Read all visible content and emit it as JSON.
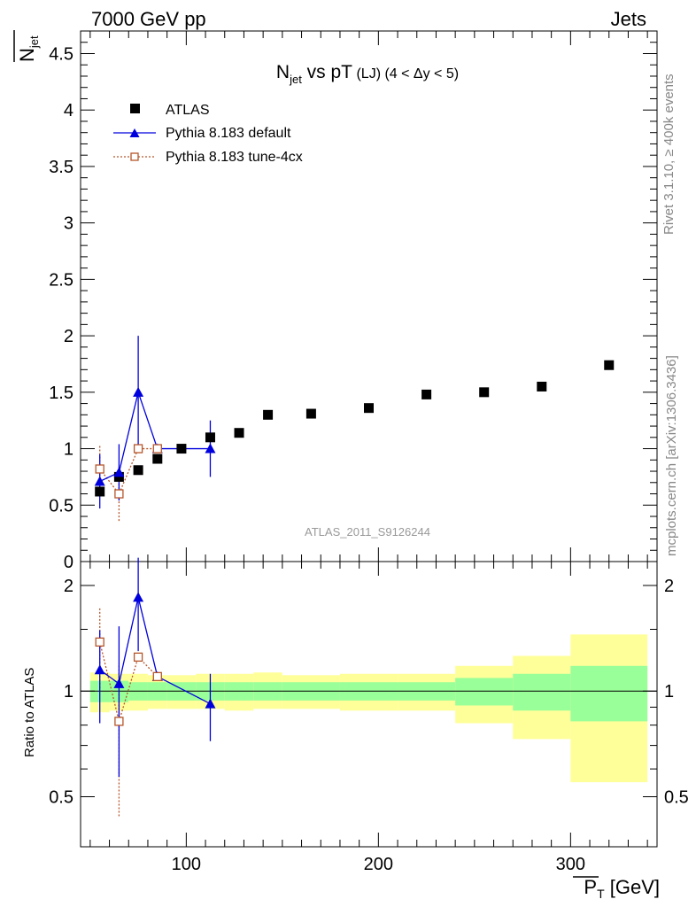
{
  "header": {
    "left": "7000 GeV pp",
    "right": "Jets"
  },
  "side_labels": {
    "rivet": "Rivet 3.1.10, ≥ 400k events",
    "mcplots": "mcplots.cern.ch [arXiv:1306.3436]"
  },
  "title": {
    "main": "N",
    "main_sub": "jet",
    "rest": " vs pT",
    "extra": " (LJ) (4 < Δy < 5)"
  },
  "watermark": "ATLAS_2011_S9126244",
  "colors": {
    "atlas": "#000000",
    "default": "#0000dd",
    "tune": "#b5562a",
    "band_inner": "#99ff99",
    "band_outer": "#ffff99"
  },
  "chart_data": [
    {
      "type": "scatter",
      "title": "Njet vs pT (LJ) (4 < Δy < 5)",
      "ylabel": "N",
      "ylabel_sub": "jet",
      "ylim": [
        0,
        4.7
      ],
      "xlim": [
        45,
        345
      ],
      "yticks": [
        0,
        0.5,
        1,
        1.5,
        2,
        2.5,
        3,
        3.5,
        4,
        4.5
      ],
      "ytick_labels": [
        "0",
        "0.5",
        "1",
        "1.5",
        "2",
        "2.5",
        "3",
        "3.5",
        "4",
        "4.5"
      ],
      "legend_position": "top-left",
      "series": [
        {
          "name": "ATLAS",
          "marker": "filled-square",
          "x": [
            55,
            65,
            75,
            85,
            97.5,
            112.5,
            127.5,
            142.5,
            165,
            195,
            225,
            255,
            285,
            320
          ],
          "y": [
            0.62,
            0.75,
            0.81,
            0.91,
            1.0,
            1.1,
            1.14,
            1.3,
            1.31,
            1.36,
            1.48,
            1.5,
            1.55,
            1.74
          ]
        },
        {
          "name": "Pythia 8.183 default",
          "marker": "filled-triangle",
          "x": [
            55,
            65,
            75,
            85,
            112.5
          ],
          "y": [
            0.71,
            0.79,
            1.5,
            1.0,
            1.0
          ],
          "err": [
            0.24,
            0.25,
            0.5,
            0.0,
            0.25
          ]
        },
        {
          "name": "Pythia 8.183 tune-4cx",
          "marker": "open-square",
          "x": [
            55,
            65,
            75,
            85
          ],
          "y": [
            0.82,
            0.6,
            1.0,
            1.0
          ],
          "err": [
            0.22,
            0.24,
            0.0,
            0.0
          ]
        }
      ]
    },
    {
      "type": "scatter",
      "ylabel": "Ratio to ATLAS",
      "xlabel": "P",
      "xlabel_sub": "T",
      "xlabel_unit": " [GeV]",
      "ylim": [
        0.36,
        2.34
      ],
      "xlim": [
        45,
        345
      ],
      "yticks": [
        0.5,
        1,
        2
      ],
      "ytick_labels": [
        "0.5",
        "1",
        "2"
      ],
      "xticks": [
        100,
        200,
        300
      ],
      "xtick_labels": [
        "100",
        "200",
        "300"
      ],
      "bands": [
        {
          "x": [
            50,
            60
          ],
          "inner": [
            0.93,
            1.07
          ],
          "outer": [
            0.87,
            1.13
          ]
        },
        {
          "x": [
            60,
            70
          ],
          "inner": [
            0.93,
            1.07
          ],
          "outer": [
            0.88,
            1.12
          ]
        },
        {
          "x": [
            70,
            80
          ],
          "inner": [
            0.94,
            1.06
          ],
          "outer": [
            0.88,
            1.12
          ]
        },
        {
          "x": [
            80,
            90
          ],
          "inner": [
            0.94,
            1.06
          ],
          "outer": [
            0.89,
            1.11
          ]
        },
        {
          "x": [
            90,
            105
          ],
          "inner": [
            0.94,
            1.06
          ],
          "outer": [
            0.89,
            1.11
          ]
        },
        {
          "x": [
            105,
            120
          ],
          "inner": [
            0.94,
            1.06
          ],
          "outer": [
            0.89,
            1.12
          ]
        },
        {
          "x": [
            120,
            135
          ],
          "inner": [
            0.94,
            1.06
          ],
          "outer": [
            0.88,
            1.12
          ]
        },
        {
          "x": [
            135,
            150
          ],
          "inner": [
            0.94,
            1.06
          ],
          "outer": [
            0.89,
            1.13
          ]
        },
        {
          "x": [
            150,
            180
          ],
          "inner": [
            0.94,
            1.06
          ],
          "outer": [
            0.89,
            1.11
          ]
        },
        {
          "x": [
            180,
            210
          ],
          "inner": [
            0.94,
            1.06
          ],
          "outer": [
            0.88,
            1.12
          ]
        },
        {
          "x": [
            210,
            240
          ],
          "inner": [
            0.94,
            1.06
          ],
          "outer": [
            0.88,
            1.12
          ]
        },
        {
          "x": [
            240,
            270
          ],
          "inner": [
            0.91,
            1.09
          ],
          "outer": [
            0.81,
            1.18
          ]
        },
        {
          "x": [
            270,
            300
          ],
          "inner": [
            0.88,
            1.12
          ],
          "outer": [
            0.73,
            1.26
          ]
        },
        {
          "x": [
            300,
            340
          ],
          "inner": [
            0.82,
            1.18
          ],
          "outer": [
            0.55,
            1.45
          ]
        }
      ],
      "series": [
        {
          "name": "Pythia 8.183 default",
          "x": [
            55,
            65,
            75,
            85,
            112.5
          ],
          "y": [
            1.15,
            1.05,
            1.85,
            1.1,
            0.92
          ],
          "err": [
            0.34,
            0.48,
            0.55,
            0.0,
            0.2
          ]
        },
        {
          "name": "Pythia 8.183 tune-4cx",
          "x": [
            55,
            65,
            75,
            85
          ],
          "y": [
            1.38,
            0.82,
            1.25,
            1.1
          ],
          "err": [
            0.36,
            0.38,
            0.0,
            0.0
          ]
        }
      ]
    }
  ]
}
